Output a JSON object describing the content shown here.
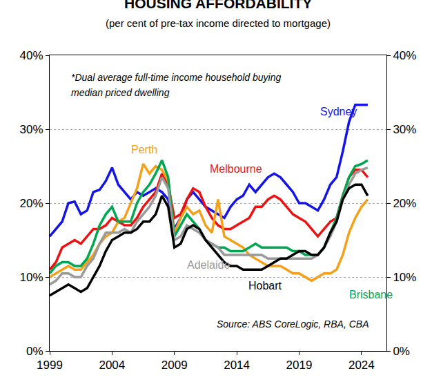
{
  "chart_data": {
    "type": "line",
    "title": "HOUSING AFFORDABILITY",
    "subtitle": "(per cent of pre-tax income directed to mortgage)",
    "annotations": [
      "*Dual average full-time income household buying",
      "median priced dwelling",
      "Source: ABS CoreLogic, RBA, CBA"
    ],
    "x": [
      1999,
      1999.5,
      2000,
      2000.5,
      2001,
      2001.5,
      2002,
      2002.5,
      2003,
      2003.5,
      2004,
      2004.5,
      2005,
      2005.5,
      2006,
      2006.5,
      2007,
      2007.5,
      2008,
      2008.5,
      2009,
      2009.5,
      2010,
      2010.5,
      2011,
      2011.5,
      2012,
      2012.5,
      2013,
      2013.5,
      2014,
      2014.5,
      2015,
      2015.5,
      2016,
      2016.5,
      2017,
      2017.5,
      2018,
      2018.5,
      2019,
      2019.5,
      2020,
      2020.5,
      2021,
      2021.5,
      2022,
      2022.5,
      2023,
      2023.5,
      2024,
      2024.5
    ],
    "series": [
      {
        "name": "Sydney",
        "color": "#1414e6",
        "values": [
          15.5,
          16.5,
          17.5,
          20,
          20.2,
          18.5,
          19,
          21.5,
          21.8,
          23,
          24.8,
          22.5,
          21.5,
          20.5,
          21.5,
          21,
          21.5,
          22,
          21.5,
          20.5,
          16.5,
          18,
          20.5,
          21.5,
          20.5,
          19.5,
          19,
          18.5,
          18,
          19.5,
          20.5,
          21,
          22.5,
          21.5,
          22.5,
          23.5,
          24,
          23.5,
          22.5,
          21.5,
          20,
          20,
          19.5,
          19,
          20.5,
          22.5,
          23.5,
          27,
          31,
          33.3,
          33.3,
          33.3
        ]
      },
      {
        "name": "Melbourne",
        "color": "#ee1111",
        "values": [
          11,
          12,
          14,
          14.5,
          15,
          14.5,
          15.5,
          16.5,
          16.5,
          17,
          18,
          17.5,
          17,
          17,
          18,
          19.5,
          20.5,
          21.5,
          24,
          22.5,
          18,
          18.5,
          20.5,
          22,
          21.5,
          19.5,
          18,
          17,
          16.5,
          16.5,
          17,
          17.5,
          18,
          19.5,
          19.5,
          20.5,
          21,
          20.5,
          19.5,
          18.5,
          18,
          17.5,
          16.5,
          15.5,
          16.5,
          17.5,
          18,
          21,
          23.5,
          24.5,
          24.5,
          23.5
        ]
      },
      {
        "name": "Perth",
        "color": "#f5a01a",
        "values": [
          10,
          10.5,
          11,
          11.5,
          11,
          11,
          12,
          13,
          14.5,
          15.5,
          16,
          17.5,
          18,
          20,
          22,
          25.3,
          24,
          25,
          24.5,
          23,
          16,
          18,
          19.5,
          18.5,
          19,
          17,
          16,
          20.5,
          15.5,
          15,
          14.5,
          14,
          13,
          12.5,
          12,
          11.5,
          11.5,
          11.5,
          11,
          10.5,
          10.5,
          10,
          9.5,
          10,
          10.5,
          10.5,
          11,
          13,
          16,
          18,
          19.5,
          20.5
        ]
      },
      {
        "name": "Brisbane",
        "color": "#00a650",
        "values": [
          10.5,
          11.5,
          12,
          12,
          11.5,
          11.5,
          12.5,
          14.5,
          17,
          18.5,
          19.5,
          17.5,
          17.5,
          17.5,
          20,
          21.5,
          22.5,
          24,
          25.8,
          23.5,
          15.5,
          17,
          18.5,
          17.5,
          16.5,
          15,
          14.5,
          14,
          14,
          13.5,
          13.5,
          13.5,
          14,
          14.5,
          14,
          14,
          14,
          14,
          14,
          13.5,
          13.5,
          13,
          13,
          13,
          14,
          16,
          18,
          21,
          23.5,
          25,
          25.3,
          25.8
        ]
      },
      {
        "name": "Adelaide",
        "color": "#999999",
        "values": [
          9,
          9.5,
          10.5,
          10.5,
          10,
          10,
          11.5,
          12.5,
          14.5,
          16,
          16,
          16,
          16.5,
          16,
          17.5,
          18.5,
          19.5,
          21,
          23.5,
          22,
          15,
          15.5,
          17,
          16.5,
          16,
          15,
          14.5,
          14,
          13,
          13,
          13,
          13,
          13,
          13,
          13,
          12.5,
          12.5,
          12.5,
          12.5,
          12.5,
          12.5,
          12.5,
          12.5,
          13,
          14,
          15.5,
          17.5,
          20.5,
          22.5,
          24,
          24.5,
          24.8
        ]
      },
      {
        "name": "Hobart",
        "color": "#000000",
        "values": [
          7.5,
          8,
          8.5,
          9,
          8.5,
          8,
          8.5,
          10,
          11.5,
          13.5,
          15,
          15.5,
          16,
          16,
          16.5,
          17.5,
          17.5,
          18.5,
          21,
          19.5,
          14,
          14.5,
          16.5,
          17,
          16.5,
          15,
          14,
          13,
          12,
          11.5,
          11.5,
          11,
          11,
          11,
          11,
          11.5,
          12,
          12.5,
          12.5,
          13,
          13.5,
          13.5,
          13,
          13,
          14,
          16,
          17.5,
          20.5,
          22,
          22.5,
          22.5,
          21
        ]
      }
    ],
    "xlim": [
      1999,
      2026
    ],
    "xticks": [
      1999,
      2004,
      2009,
      2014,
      2019,
      2024
    ],
    "ylim": [
      0,
      40
    ],
    "yticks": [
      {
        "value": 0,
        "label": "0%"
      },
      {
        "value": 10,
        "label": "10%"
      },
      {
        "value": 20,
        "label": "20%"
      },
      {
        "value": 30,
        "label": "30%"
      },
      {
        "value": 40,
        "label": "40%"
      }
    ],
    "y2lim": [
      0,
      40
    ],
    "y2ticks": [
      {
        "value": 0,
        "label": "0%"
      },
      {
        "value": 10,
        "label": "10%"
      },
      {
        "value": 20,
        "label": "20%"
      },
      {
        "value": 30,
        "label": "30%"
      },
      {
        "value": 40,
        "label": "40%"
      }
    ],
    "grid": true
  }
}
